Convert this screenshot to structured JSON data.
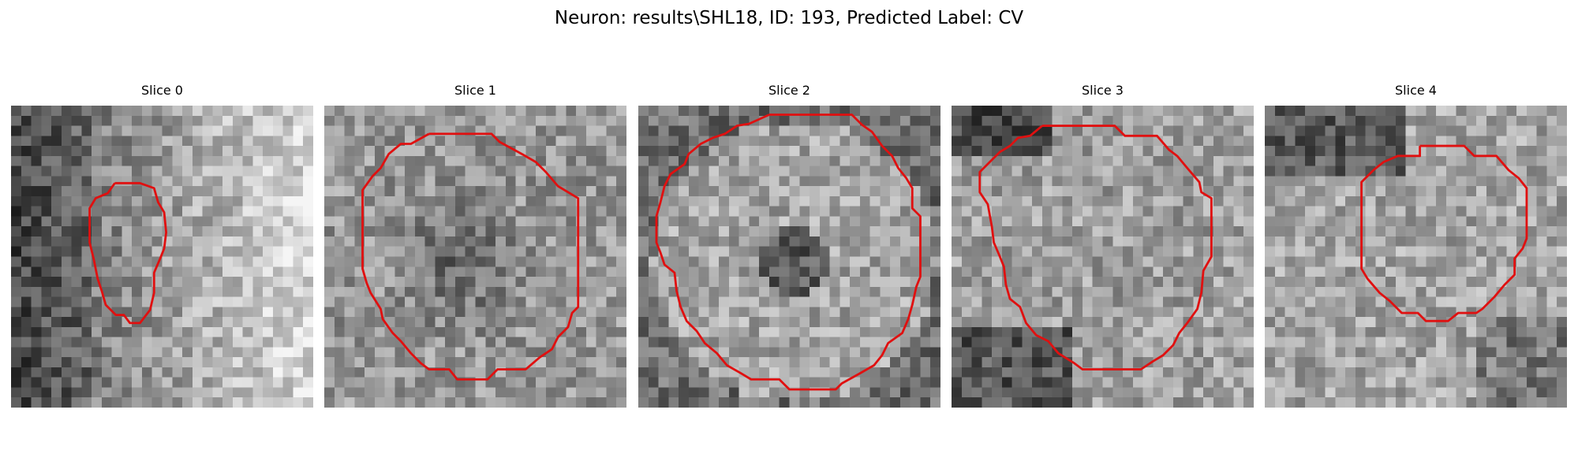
{
  "figure": {
    "title": "Neuron: results\\SHL18, ID: 193, Predicted Label: CV"
  },
  "panels": [
    {
      "title": "Slice 0",
      "contour_color": "#e01010",
      "image_tone": "grayscale microscopy patch"
    },
    {
      "title": "Slice 1",
      "contour_color": "#e01010",
      "image_tone": "grayscale microscopy patch"
    },
    {
      "title": "Slice 2",
      "contour_color": "#e01010",
      "image_tone": "grayscale microscopy patch"
    },
    {
      "title": "Slice 3",
      "contour_color": "#e01010",
      "image_tone": "grayscale microscopy patch"
    },
    {
      "title": "Slice 4",
      "contour_color": "#e01010",
      "image_tone": "grayscale microscopy patch"
    }
  ]
}
